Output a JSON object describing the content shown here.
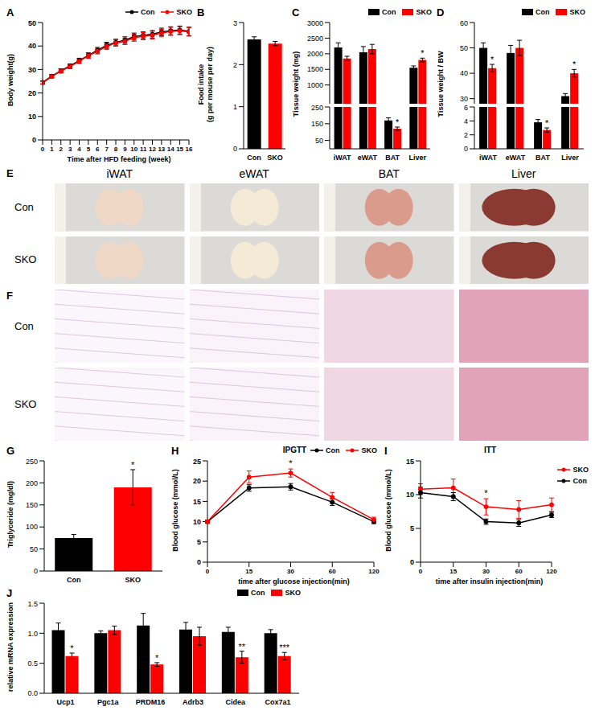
{
  "chart_data": [
    {
      "panel": "A",
      "type": "line",
      "x": [
        0,
        1,
        2,
        3,
        4,
        5,
        6,
        7,
        8,
        9,
        10,
        11,
        12,
        13,
        14,
        15,
        16
      ],
      "xlim": [
        0,
        16
      ],
      "xticks": [
        0,
        1,
        2,
        3,
        4,
        5,
        6,
        7,
        8,
        9,
        10,
        11,
        12,
        13,
        14,
        15,
        16
      ],
      "ylim": [
        0,
        50
      ],
      "yticks": [
        0,
        10,
        20,
        30,
        40,
        50
      ],
      "xlabel": "Time after HFD feeding (week)",
      "ylabel": "Body weight(g)",
      "legend": "top-right",
      "series": [
        {
          "name": "Con",
          "color": "#000000",
          "marker": "circle",
          "line_style": "solid",
          "values": [
            24.5,
            27.2,
            29.5,
            31.5,
            33.8,
            36,
            38.2,
            40.3,
            41.5,
            42.5,
            44,
            44.5,
            45,
            46,
            46.5,
            46.8,
            46.2
          ],
          "errors": [
            0.6,
            0.7,
            0.8,
            0.9,
            1,
            1.1,
            1.2,
            1.3,
            1.4,
            1.4,
            1.5,
            1.5,
            1.6,
            1.6,
            1.7,
            1.7,
            1.8
          ]
        },
        {
          "name": "SKO",
          "color": "#ff0000",
          "marker": "circle",
          "line_style": "solid",
          "values": [
            24.3,
            27,
            29.3,
            31.2,
            33.5,
            35.8,
            37.8,
            39.8,
            41.3,
            42,
            43.5,
            44.2,
            44.6,
            45.5,
            46.2,
            46.5,
            46
          ],
          "errors": [
            0.6,
            0.7,
            0.8,
            0.9,
            1,
            1.1,
            1.2,
            1.3,
            1.4,
            1.4,
            1.5,
            1.5,
            1.6,
            1.6,
            1.7,
            1.7,
            1.8
          ]
        }
      ]
    },
    {
      "panel": "B",
      "type": "bar",
      "categories": [
        "Con",
        "SKO"
      ],
      "values": [
        2.6,
        2.5
      ],
      "errors": [
        0.06,
        0.05
      ],
      "colors": [
        "#000000",
        "#ff0000"
      ],
      "ylim": [
        0,
        3
      ],
      "yticks": [
        0,
        1,
        2,
        3
      ],
      "ylabel": [
        "Food intake",
        "(g per mouse per day)"
      ]
    },
    {
      "panel": "C",
      "type": "bar",
      "categories": [
        "iWAT",
        "eWAT",
        "BAT",
        "Liver"
      ],
      "ylabel": "Tissue weight (mg)",
      "legend": "top-right",
      "segments": [
        {
          "ylim": [
            400,
            3000
          ],
          "yticks": [
            500,
            1000,
            1500,
            2000,
            2500,
            3000
          ]
        },
        {
          "ylim": [
            0,
            250
          ],
          "yticks": [
            0,
            50,
            100,
            150,
            200,
            250
          ]
        }
      ],
      "series": [
        {
          "name": "Con",
          "color": "#000000",
          "values": [
            2200,
            2050,
            170,
            1550
          ],
          "errors": [
            150,
            180,
            15,
            60
          ]
        },
        {
          "name": "SKO",
          "color": "#ff0000",
          "values": [
            1850,
            2150,
            120,
            1800
          ],
          "errors": [
            70,
            150,
            10,
            60
          ]
        }
      ],
      "annotations": [
        {
          "category": "BAT",
          "series": "SKO",
          "text": "*"
        },
        {
          "category": "Liver",
          "series": "SKO",
          "text": "*"
        }
      ]
    },
    {
      "panel": "D",
      "type": "bar",
      "categories": [
        "iWAT",
        "eWAT",
        "BAT",
        "Liver"
      ],
      "ylabel": "Tissue weight / BW",
      "legend": "top-right",
      "segments": [
        {
          "ylim": [
            28,
            60
          ],
          "yticks": [
            30,
            40,
            50,
            60
          ]
        },
        {
          "ylim": [
            0,
            6
          ],
          "yticks": [
            0,
            2,
            4,
            6
          ]
        }
      ],
      "series": [
        {
          "name": "Con",
          "color": "#000000",
          "values": [
            50,
            48,
            3.8,
            31
          ],
          "errors": [
            2,
            3,
            0.4,
            1
          ]
        },
        {
          "name": "SKO",
          "color": "#ff0000",
          "values": [
            42,
            50,
            2.7,
            40
          ],
          "errors": [
            1.5,
            3,
            0.3,
            1.5
          ]
        }
      ],
      "annotations": [
        {
          "category": "iWAT",
          "series": "SKO",
          "text": "*"
        },
        {
          "category": "BAT",
          "series": "SKO",
          "text": "*"
        },
        {
          "category": "Liver",
          "series": "SKO",
          "text": "*"
        }
      ]
    },
    {
      "panel": "G",
      "type": "bar",
      "categories": [
        "Con",
        "SKO"
      ],
      "values": [
        75,
        190
      ],
      "errors": [
        8,
        40
      ],
      "colors": [
        "#000000",
        "#ff0000"
      ],
      "ylim": [
        0,
        250
      ],
      "yticks": [
        0,
        50,
        100,
        150,
        200,
        250
      ],
      "ylabel": "Triglyceride (mg/dl)",
      "annotations": [
        {
          "category": "SKO",
          "text": "*"
        }
      ]
    },
    {
      "panel": "H",
      "type": "line",
      "title": "IPGTT",
      "categories": [
        "0",
        "15",
        "30",
        "60",
        "120"
      ],
      "ylim": [
        0,
        25
      ],
      "yticks": [
        0,
        5,
        10,
        15,
        20,
        25
      ],
      "xlabel": "time after glucose injection(min)",
      "ylabel": "Blood glucose (mmol/L)",
      "legend": "top-right",
      "series": [
        {
          "name": "Con",
          "color": "#000000",
          "marker": "circle",
          "line_style": "solid",
          "values": [
            10,
            18.3,
            18.6,
            14.8,
            10
          ],
          "errors": [
            0.4,
            0.8,
            0.8,
            0.8,
            0.5
          ]
        },
        {
          "name": "SKO",
          "color": "#ff0000",
          "marker": "circle",
          "line_style": "solid",
          "values": [
            10,
            21,
            22,
            16,
            10.5
          ],
          "errors": [
            0.4,
            1.5,
            1,
            1.2,
            0.6
          ]
        }
      ],
      "annotations": [
        {
          "category": "30",
          "series": "SKO",
          "text": "*"
        }
      ]
    },
    {
      "panel": "I",
      "type": "line",
      "title": "ITT",
      "categories": [
        "0",
        "15",
        "30",
        "60",
        "120"
      ],
      "ylim": [
        0,
        15
      ],
      "yticks": [
        0,
        5,
        10,
        15
      ],
      "xlabel": "time after insulin injection(min)",
      "ylabel": "Blood glucose (mmol/L)",
      "legend": "right",
      "series": [
        {
          "name": "SKO",
          "color": "#ff0000",
          "marker": "circle",
          "line_style": "solid",
          "values": [
            10.8,
            11,
            8.2,
            7.8,
            8.5
          ],
          "errors": [
            0.8,
            1.3,
            1.2,
            1.3,
            1
          ]
        },
        {
          "name": "Con",
          "color": "#000000",
          "marker": "circle",
          "line_style": "solid",
          "values": [
            10.3,
            9.7,
            6,
            5.8,
            7
          ],
          "errors": [
            0.8,
            0.6,
            0.4,
            0.5,
            0.4
          ]
        }
      ],
      "annotations": [
        {
          "category": "30",
          "series": "SKO",
          "text": "*"
        }
      ]
    },
    {
      "panel": "J",
      "type": "bar",
      "categories": [
        "Ucp1",
        "Pgc1a",
        "PRDM16",
        "Adrb3",
        "Cidea",
        "Cox7a1"
      ],
      "ylim": [
        0,
        1.5
      ],
      "yticks": [
        {
          "value": 0,
          "label": "0.0"
        },
        {
          "value": 0.5,
          "label": "0.5"
        },
        {
          "value": 1,
          "label": "1.0"
        },
        {
          "value": 1.5,
          "label": "1.5"
        }
      ],
      "ylabel": "relative mRNA expression",
      "legend": "top-right",
      "series": [
        {
          "name": "Con",
          "color": "#000000",
          "values": [
            1.05,
            1,
            1.13,
            1.06,
            1.02,
            1
          ],
          "errors": [
            0.12,
            0.04,
            0.2,
            0.12,
            0.08,
            0.06
          ]
        },
        {
          "name": "SKO",
          "color": "#ff0000",
          "values": [
            0.62,
            1.05,
            0.48,
            0.95,
            0.6,
            0.62
          ],
          "errors": [
            0.05,
            0.07,
            0.03,
            0.15,
            0.1,
            0.06
          ]
        }
      ],
      "annotations": [
        {
          "category": "Ucp1",
          "series": "SKO",
          "text": "*"
        },
        {
          "category": "PRDM16",
          "series": "SKO",
          "text": "*"
        },
        {
          "category": "Cidea",
          "series": "SKO",
          "text": "**"
        },
        {
          "category": "Cox7a1",
          "series": "SKO",
          "text": "***"
        }
      ]
    }
  ],
  "image_panels": [
    {
      "panel": "E",
      "columns": [
        "iWAT",
        "eWAT",
        "BAT",
        "Liver"
      ],
      "rows": [
        "Con",
        "SKO"
      ]
    },
    {
      "panel": "F",
      "rows": [
        "Con",
        "SKO"
      ]
    }
  ]
}
